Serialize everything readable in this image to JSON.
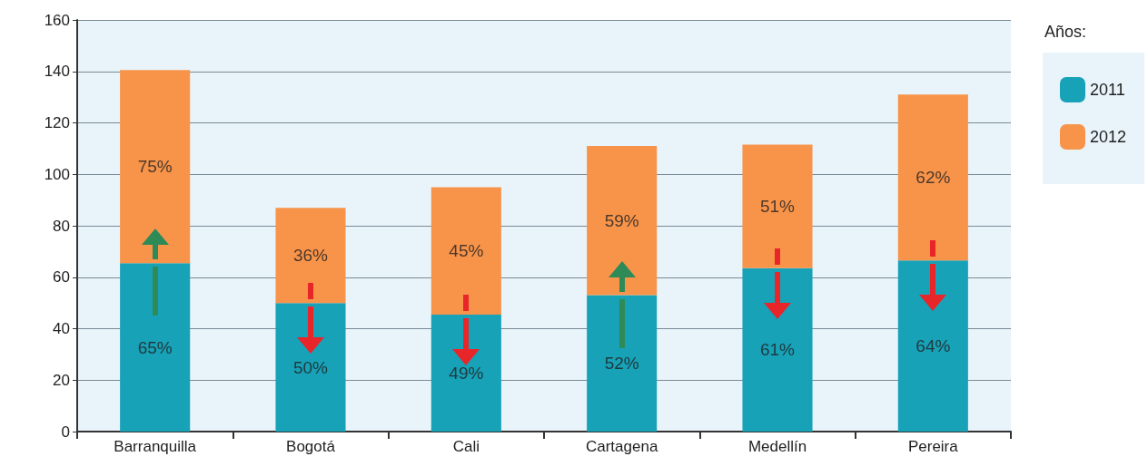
{
  "chart_data": {
    "type": "bar",
    "stacked": true,
    "legend_title": "Años:",
    "legend": "right",
    "grid": "y",
    "categories": [
      "Barranquilla",
      "Bogotá",
      "Cali",
      "Cartagena",
      "Medellín",
      "Pereira"
    ],
    "ylim": [
      0,
      160
    ],
    "yticks": [
      0,
      20,
      40,
      60,
      80,
      100,
      120,
      140,
      160
    ],
    "series": [
      {
        "name": "2011",
        "color": "#17a2b8",
        "values": [
          65.5,
          50,
          45.5,
          53,
          63.5,
          66.5
        ]
      },
      {
        "name": "2012",
        "color": "#f8944a",
        "values": [
          75,
          37,
          49.5,
          58,
          48,
          64.5
        ]
      }
    ],
    "annotations": [
      "65%",
      "75%",
      "50%",
      "36%",
      "49%",
      "45%",
      "52%",
      "59%",
      "61%",
      "51%",
      "64%",
      "62%"
    ]
  }
}
